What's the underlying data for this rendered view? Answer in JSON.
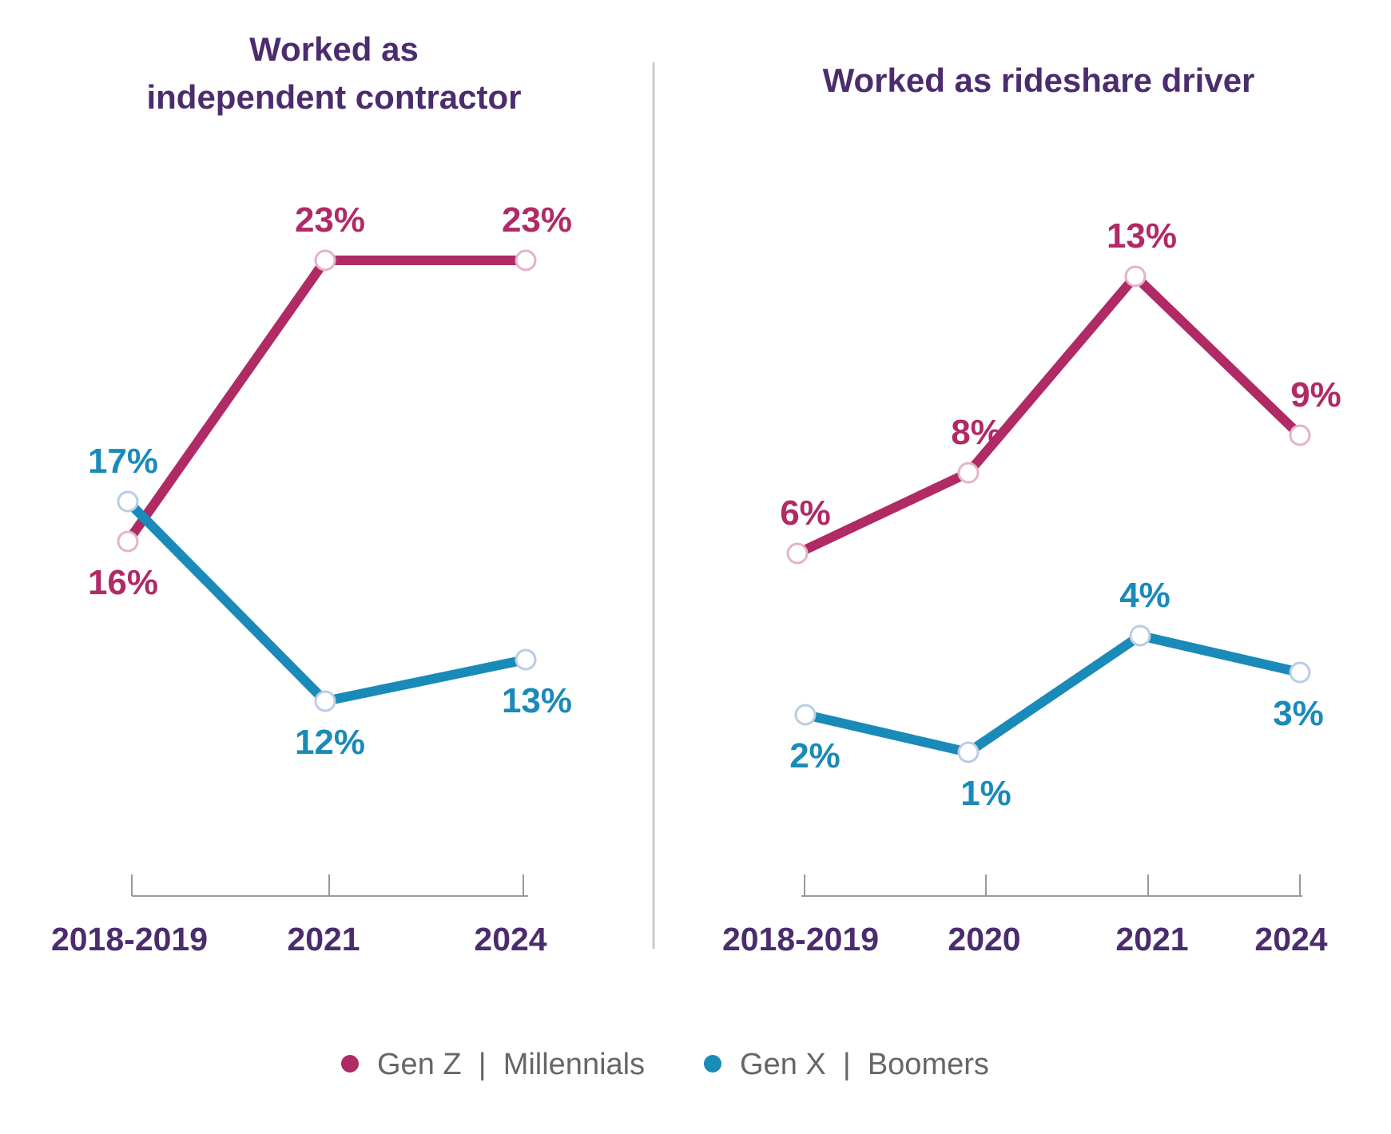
{
  "colors": {
    "title": "#4b2c6e",
    "gen_z_millennials": "#b02a66",
    "gen_x_boomers": "#1a8ab8",
    "marker_fill": "#ffffff",
    "marker_stroke_magenta": "#e3b4c8",
    "marker_stroke_blue": "#b9cde3",
    "axis": "#999999",
    "divider": "#cccccc",
    "legend_text": "#666666"
  },
  "legend": {
    "items": [
      {
        "label": "Gen Z  |  Millennials",
        "color_key": "gen_z_millennials"
      },
      {
        "label": "Gen X  |  Boomers",
        "color_key": "gen_x_boomers"
      }
    ]
  },
  "chart_data": [
    {
      "type": "line",
      "title_lines": [
        "Worked as",
        "independent contractor"
      ],
      "categories": [
        "2018-2019",
        "2021",
        "2024"
      ],
      "ylim": [
        0,
        30
      ],
      "series": [
        {
          "name": "Gen Z | Millennials",
          "color_key": "gen_z_millennials",
          "values": [
            16,
            23,
            23
          ],
          "labels": [
            "16%",
            "23%",
            "23%"
          ]
        },
        {
          "name": "Gen X | Boomers",
          "color_key": "gen_x_boomers",
          "values": [
            17,
            12,
            13
          ],
          "labels": [
            "17%",
            "12%",
            "13%"
          ]
        }
      ]
    },
    {
      "type": "line",
      "title_lines": [
        "Worked as rideshare driver"
      ],
      "categories": [
        "2018-2019",
        "2020",
        "2021",
        "2024"
      ],
      "ylim": [
        0,
        18
      ],
      "series": [
        {
          "name": "Gen Z | Millennials",
          "color_key": "gen_z_millennials",
          "values": [
            6,
            8,
            13,
            9
          ],
          "labels": [
            "6%",
            "8%",
            "13%",
            "9%"
          ]
        },
        {
          "name": "Gen X | Boomers",
          "color_key": "gen_x_boomers",
          "values": [
            2,
            1,
            4,
            3
          ],
          "labels": [
            "2%",
            "1%",
            "4%",
            "3%"
          ]
        }
      ]
    }
  ]
}
